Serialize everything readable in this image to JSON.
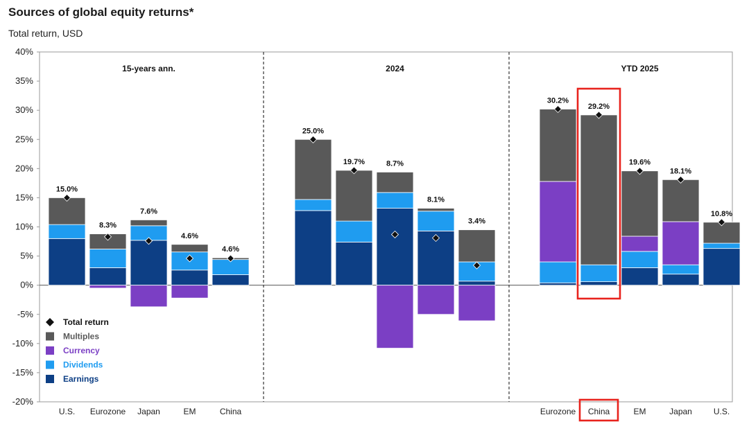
{
  "header": {
    "title": "Sources of global equity returns*",
    "subtitle": "Total return, USD"
  },
  "colors": {
    "earnings": "#0d3f85",
    "dividends": "#1f9cf0",
    "currency": "#7b3fc4",
    "multiples": "#595959",
    "highlight": "#e8231d"
  },
  "chart_data": {
    "type": "bar",
    "stacked": true,
    "ylim": [
      -20,
      40
    ],
    "yticks": [
      "40%",
      "35%",
      "30%",
      "25%",
      "20%",
      "15%",
      "10%",
      "5%",
      "0%",
      "-5%",
      "-10%",
      "-15%",
      "-20%"
    ],
    "legend": {
      "placement": "bottom-left",
      "items": [
        {
          "key": "total",
          "label": "Total return"
        },
        {
          "key": "multiples",
          "label": "Multiples"
        },
        {
          "key": "currency",
          "label": "Currency"
        },
        {
          "key": "dividends",
          "label": "Dividends"
        },
        {
          "key": "earnings",
          "label": "Earnings"
        }
      ]
    },
    "panels": [
      {
        "title": "15-years ann.",
        "bars": [
          {
            "label": "U.S.",
            "earnings": 8.0,
            "dividends": 2.4,
            "currency": 0,
            "multiples": 4.6,
            "total": 15.0,
            "total_label": "15.0%"
          },
          {
            "label": "Eurozone",
            "earnings": 3.0,
            "dividends": 3.2,
            "currency": -0.5,
            "multiples": 2.6,
            "total": 8.3,
            "total_label": "8.3%"
          },
          {
            "label": "Japan",
            "earnings": 7.7,
            "dividends": 2.5,
            "currency": -3.7,
            "multiples": 1.0,
            "total": 7.6,
            "total_label": "7.6%"
          },
          {
            "label": "EM",
            "earnings": 2.6,
            "dividends": 3.1,
            "currency": -2.2,
            "multiples": 1.3,
            "total": 4.6,
            "total_label": "4.6%"
          },
          {
            "label": "China",
            "earnings": 1.8,
            "dividends": 2.6,
            "currency": 0,
            "multiples": 0.3,
            "total": 4.6,
            "total_label": "4.6%"
          }
        ]
      },
      {
        "title": "2024",
        "bars": [
          {
            "label": "",
            "earnings": 12.8,
            "dividends": 1.9,
            "currency": 0,
            "multiples": 10.3,
            "total": 25.0,
            "total_label": "25.0%"
          },
          {
            "label": "",
            "earnings": 7.4,
            "dividends": 3.6,
            "currency": 0,
            "multiples": 8.7,
            "total": 19.7,
            "total_label": "19.7%"
          },
          {
            "label": "",
            "earnings": 13.2,
            "dividends": 2.7,
            "currency": -10.8,
            "multiples": 3.5,
            "total": 8.7,
            "total_label": "8.7%"
          },
          {
            "label": "",
            "earnings": 9.3,
            "dividends": 3.4,
            "currency": -5.0,
            "multiples": 0.5,
            "total": 8.1,
            "total_label": "8.1%"
          },
          {
            "label": "",
            "earnings": 0.7,
            "dividends": 3.3,
            "currency": -6.1,
            "multiples": 5.5,
            "total": 3.4,
            "total_label": "3.4%"
          }
        ]
      },
      {
        "title": "YTD 2025",
        "bars": [
          {
            "label": "Eurozone",
            "earnings": 0.4,
            "dividends": 3.6,
            "currency": 13.8,
            "multiples": 12.4,
            "total": 30.2,
            "total_label": "30.2%"
          },
          {
            "label": "China",
            "earnings": 0.6,
            "dividends": 2.9,
            "currency": 0,
            "multiples": 25.7,
            "total": 29.2,
            "total_label": "29.2%",
            "highlight": true
          },
          {
            "label": "EM",
            "earnings": 3.0,
            "dividends": 2.8,
            "currency": 2.6,
            "multiples": 11.2,
            "total": 19.6,
            "total_label": "19.6%"
          },
          {
            "label": "Japan",
            "earnings": 1.9,
            "dividends": 1.6,
            "currency": 7.4,
            "multiples": 7.2,
            "total": 18.1,
            "total_label": "18.1%"
          },
          {
            "label": "U.S.",
            "earnings": 6.3,
            "dividends": 0.9,
            "currency": 0,
            "multiples": 3.6,
            "total": 10.8,
            "total_label": "10.8%"
          }
        ]
      }
    ]
  }
}
